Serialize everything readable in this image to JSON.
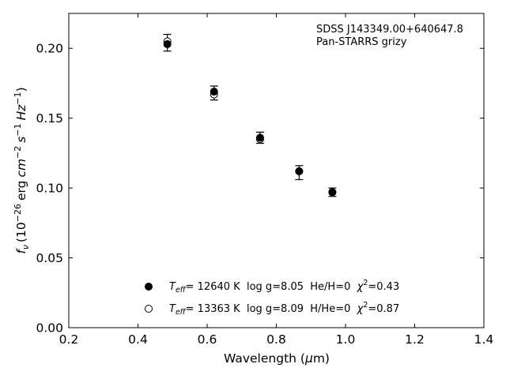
{
  "chart_data": {
    "type": "scatter",
    "title": "",
    "annotation_lines": [
      "SDSS J143349.00+640647.8",
      "Pan-STARRS grizy"
    ],
    "xlabel_main": "Wavelength (",
    "xlabel_mu": "μ",
    "xlabel_unit": "m)",
    "ylabel_f": "f",
    "ylabel_nu": "ν",
    "ylabel_rest": "(10",
    "ylabel_exp1": "−26",
    "ylabel_erg": "erg",
    "ylabel_cm": "cm",
    "ylabel_exp2": "−2",
    "ylabel_s": "s",
    "ylabel_exp3": "−1",
    "ylabel_hz": "Hz",
    "ylabel_exp4": "−1",
    "ylabel_close": ")",
    "xlim": [
      0.2,
      1.4
    ],
    "ylim": [
      0.0,
      0.225
    ],
    "x_ticks": [
      "0.2",
      "0.4",
      "0.6",
      "0.8",
      "1.0",
      "1.2",
      "1.4"
    ],
    "y_ticks": [
      "0.00",
      "0.05",
      "0.10",
      "0.15",
      "0.20"
    ],
    "observed": {
      "x": [
        0.485,
        0.62,
        0.753,
        0.866,
        0.962
      ],
      "y": [
        0.204,
        0.168,
        0.136,
        0.111,
        0.097
      ],
      "yerr": [
        0.006,
        0.005,
        0.004,
        0.005,
        0.003
      ]
    },
    "series": [
      {
        "marker": "filled",
        "x": [
          0.485,
          0.62,
          0.753,
          0.866,
          0.962
        ],
        "y": [
          0.203,
          0.169,
          0.136,
          0.112,
          0.097
        ],
        "legend_t": "T",
        "legend_eff": "eff",
        "legend_text": "= 12640 K  log g=8.05  He/H=0  ",
        "legend_chi": "χ",
        "legend_chi_exp": "2",
        "legend_chi_val": "=0.43"
      },
      {
        "marker": "open",
        "x": [
          0.485,
          0.62,
          0.753,
          0.866,
          0.962
        ],
        "y": [
          0.205,
          0.167,
          0.135,
          0.112,
          0.097
        ],
        "legend_t": "T",
        "legend_eff": "eff",
        "legend_text": "= 13363 K  log g=8.09  H/He=0  ",
        "legend_chi": "χ",
        "legend_chi_exp": "2",
        "legend_chi_val": "=0.87"
      }
    ],
    "grid": false,
    "legend_position": "lower-left"
  }
}
